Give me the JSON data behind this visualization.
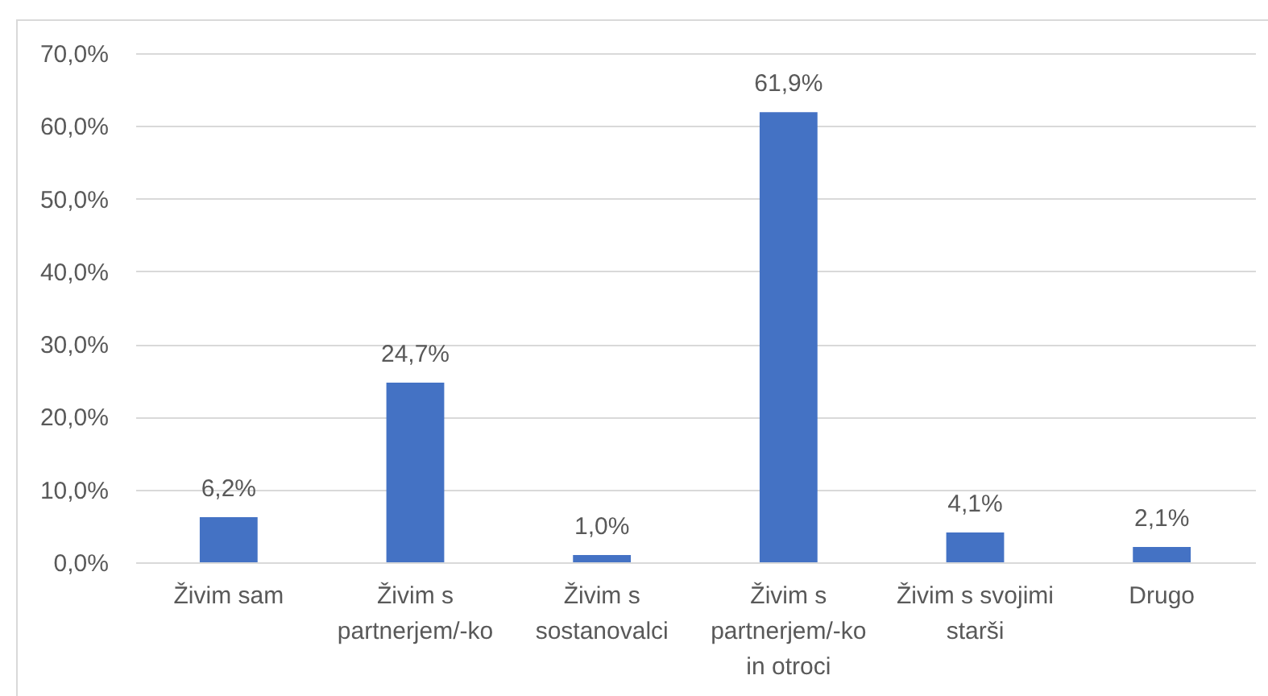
{
  "chart_data": {
    "type": "bar",
    "categories": [
      "Živim sam",
      "Živim s partnerjem/-ko",
      "Živim s sostanovalci",
      "Živim s partnerjem/-ko in otroci",
      "Živim s svojimi starši",
      "Drugo"
    ],
    "values": [
      6.2,
      24.7,
      1.0,
      61.9,
      4.1,
      2.1
    ],
    "value_labels": [
      "6,2%",
      "24,7%",
      "1,0%",
      "61,9%",
      "4,1%",
      "2,1%"
    ],
    "color": "#4472c4",
    "ylim": [
      0,
      70
    ],
    "yticks": [
      {
        "value": 0,
        "label": "0,0%"
      },
      {
        "value": 10,
        "label": "10,0%"
      },
      {
        "value": 20,
        "label": "20,0%"
      },
      {
        "value": 30,
        "label": "30,0%"
      },
      {
        "value": 40,
        "label": "40,0%"
      },
      {
        "value": 50,
        "label": "50,0%"
      },
      {
        "value": 60,
        "label": "60,0%"
      },
      {
        "value": 70,
        "label": "70,0%"
      }
    ],
    "grid": "y"
  }
}
